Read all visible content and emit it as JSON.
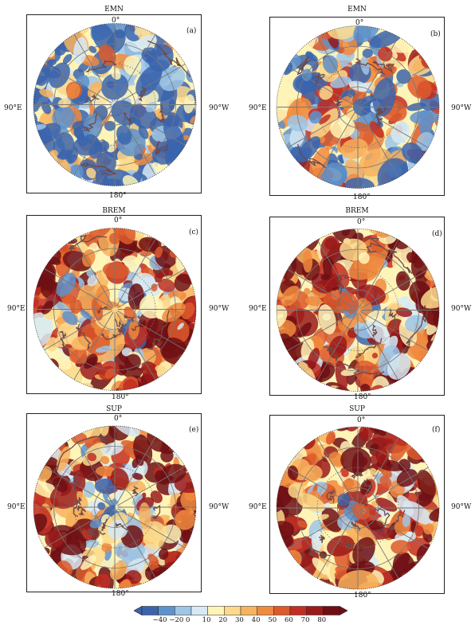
{
  "panels": [
    {
      "id": "a",
      "title": "EMN",
      "label": "(a)",
      "top_lon": "0°",
      "left_lon": "90°E",
      "right_lon": "90°W",
      "bottom_lon": "180°"
    },
    {
      "id": "b",
      "title": "EMN",
      "label": "(b)",
      "top_lon": "0°",
      "left_lon": "90°E",
      "right_lon": "90°W",
      "bottom_lon": "180°"
    },
    {
      "id": "c",
      "title": "BREM",
      "label": "(c)",
      "top_lon": "0°",
      "left_lon": "90°E",
      "right_lon": "90°W",
      "bottom_lon": "180°"
    },
    {
      "id": "d",
      "title": "BREM",
      "label": "(d)",
      "top_lon": "0°",
      "left_lon": "90°E",
      "right_lon": "90°W",
      "bottom_lon": "180°"
    },
    {
      "id": "e",
      "title": "SUP",
      "label": "(e)",
      "top_lon": "0°",
      "left_lon": "90°E",
      "right_lon": "90°W",
      "bottom_lon": "180°"
    },
    {
      "id": "f",
      "title": "SUP",
      "label": "(f)",
      "top_lon": "0°",
      "left_lon": "90°E",
      "right_lon": "90°W",
      "bottom_lon": "180°"
    }
  ],
  "colorbar": {
    "ticks": [
      "−40",
      "−20",
      "0",
      "10",
      "20",
      "30",
      "40",
      "50",
      "60",
      "70",
      "80"
    ],
    "colors": [
      "#3b64ad",
      "#5e92cc",
      "#9ec6e6",
      "#d6e9f4",
      "#fff4b8",
      "#fcd98b",
      "#f8b35e",
      "#f08a3e",
      "#dd5a2b",
      "#c22e22",
      "#9b1a1a",
      "#6e0f14"
    ]
  },
  "map_style": {
    "coast_color": "#6b4a4a",
    "grid_color": "#777777"
  }
}
